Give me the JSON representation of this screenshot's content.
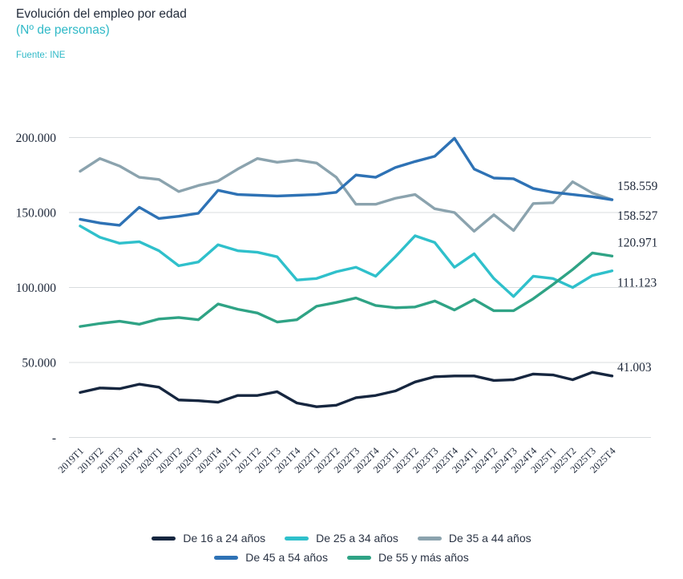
{
  "header": {
    "title": "Evolución del empleo por edad",
    "subtitle": "(Nº de personas)",
    "source": "Fuente: INE"
  },
  "colors": {
    "title_text": "#242d3c",
    "accent_cyan": "#2fb9c7",
    "tick_text": "#1c2638",
    "gridline": "#d8dcdf",
    "legend_text": "#2b3445"
  },
  "chart_data": {
    "type": "line",
    "title": "Evolución del empleo por edad",
    "subtitle": "(Nº de personas)",
    "source": "Fuente: INE",
    "grid": "horizontal",
    "legend_position": "bottom",
    "ylim": [
      0,
      200000
    ],
    "yticks": [
      {
        "value": 0,
        "label": "-"
      },
      {
        "value": 50000,
        "label": "50.000"
      },
      {
        "value": 100000,
        "label": "100.000"
      },
      {
        "value": 150000,
        "label": "150.000"
      },
      {
        "value": 200000,
        "label": "200.000"
      }
    ],
    "categories": [
      "2019T1",
      "2019T2",
      "2019T3",
      "2019T4",
      "2020T1",
      "2020T2",
      "2020T3",
      "2020T4",
      "2021T1",
      "2021T2",
      "2021T3",
      "2021T4",
      "2022T1",
      "2022T2",
      "2022T3",
      "2022T4",
      "2023T1",
      "2023T2",
      "2023T3",
      "2023T4",
      "2024T1",
      "2024T2",
      "2024T3",
      "2024T4",
      "2025T1",
      "2025T2",
      "2025T3",
      "2025T4"
    ],
    "series": [
      {
        "name": "De 16 a 24 años",
        "color": "#16263f",
        "end_label": "41.003",
        "end_label_dy": -6,
        "values": [
          30000,
          33000,
          32500,
          35500,
          33500,
          25000,
          24500,
          23500,
          28000,
          28000,
          30500,
          23000,
          20500,
          21500,
          26500,
          28000,
          31000,
          37000,
          40500,
          41000,
          41000,
          38000,
          38500,
          42300,
          41700,
          38500,
          43500,
          41003
        ]
      },
      {
        "name": "De 25 a 34 años",
        "color": "#2fc0cb",
        "end_label": "111.123",
        "end_label_dy": 20,
        "values": [
          141000,
          133500,
          129500,
          130500,
          124500,
          114500,
          117000,
          128500,
          124500,
          123500,
          120500,
          105000,
          106000,
          110500,
          113500,
          107500,
          120500,
          134500,
          130000,
          113500,
          122500,
          106000,
          94000,
          107500,
          106000,
          100000,
          108000,
          111123
        ]
      },
      {
        "name": "De 35 a 44 años",
        "color": "#8ba3ae",
        "end_label": "158.559",
        "end_label_dy": -12,
        "values": [
          177500,
          186000,
          181000,
          173500,
          172000,
          164000,
          168000,
          171000,
          179000,
          186000,
          183500,
          185000,
          183000,
          173500,
          155500,
          155500,
          159500,
          162000,
          152500,
          150000,
          137500,
          148500,
          138000,
          156000,
          156500,
          170500,
          163000,
          158559
        ]
      },
      {
        "name": "De 45 a 54 años",
        "color": "#2e72b5",
        "end_label": "158.527",
        "end_label_dy": 25,
        "values": [
          145500,
          143000,
          141500,
          153500,
          146000,
          147500,
          149500,
          164800,
          162000,
          161500,
          161000,
          161500,
          162000,
          163500,
          175000,
          173500,
          180000,
          184000,
          187500,
          199500,
          179000,
          173000,
          172500,
          166000,
          163500,
          162000,
          160500,
          158527
        ]
      },
      {
        "name": "De 55 y más años",
        "color": "#2fa385",
        "end_label": "120.971",
        "end_label_dy": -12,
        "values": [
          74000,
          76000,
          77500,
          75500,
          79000,
          80000,
          78500,
          89000,
          85500,
          83000,
          77000,
          78500,
          87500,
          90000,
          93000,
          88000,
          86500,
          87000,
          91000,
          85000,
          92000,
          84500,
          84500,
          92500,
          102000,
          112000,
          123000,
          120971
        ]
      }
    ],
    "legend_rows": [
      [
        0,
        1,
        2
      ],
      [
        3,
        4
      ]
    ]
  }
}
